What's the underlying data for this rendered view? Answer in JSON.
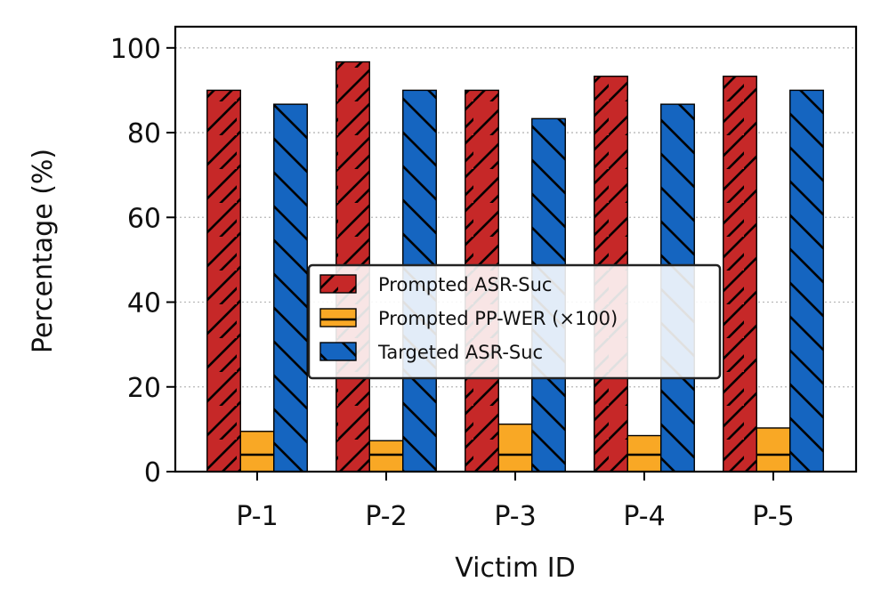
{
  "chart_data": {
    "type": "bar",
    "categories": [
      "P-1",
      "P-2",
      "P-3",
      "P-4",
      "P-5"
    ],
    "series": [
      {
        "name": "Prompted ASR-Suc",
        "values": [
          90.0,
          96.7,
          90.0,
          93.3,
          93.3
        ],
        "color": "#c62828",
        "hatch": "forward-diagonal"
      },
      {
        "name": "Prompted PP-WER (×100)",
        "values": [
          9.5,
          7.3,
          11.2,
          8.5,
          10.3
        ],
        "color": "#f9a825",
        "hatch": "horizontal"
      },
      {
        "name": "Targeted ASR-Suc",
        "values": [
          86.7,
          90.0,
          83.3,
          86.7,
          90.0
        ],
        "color": "#1565c0",
        "hatch": "back-diagonal"
      }
    ],
    "xlabel": "Victim ID",
    "ylabel": "Percentage (%)",
    "ylim": [
      0,
      105
    ],
    "yticks": [
      0,
      20,
      40,
      60,
      80,
      100
    ],
    "grid": "y-dotted",
    "legend_position": "center"
  }
}
